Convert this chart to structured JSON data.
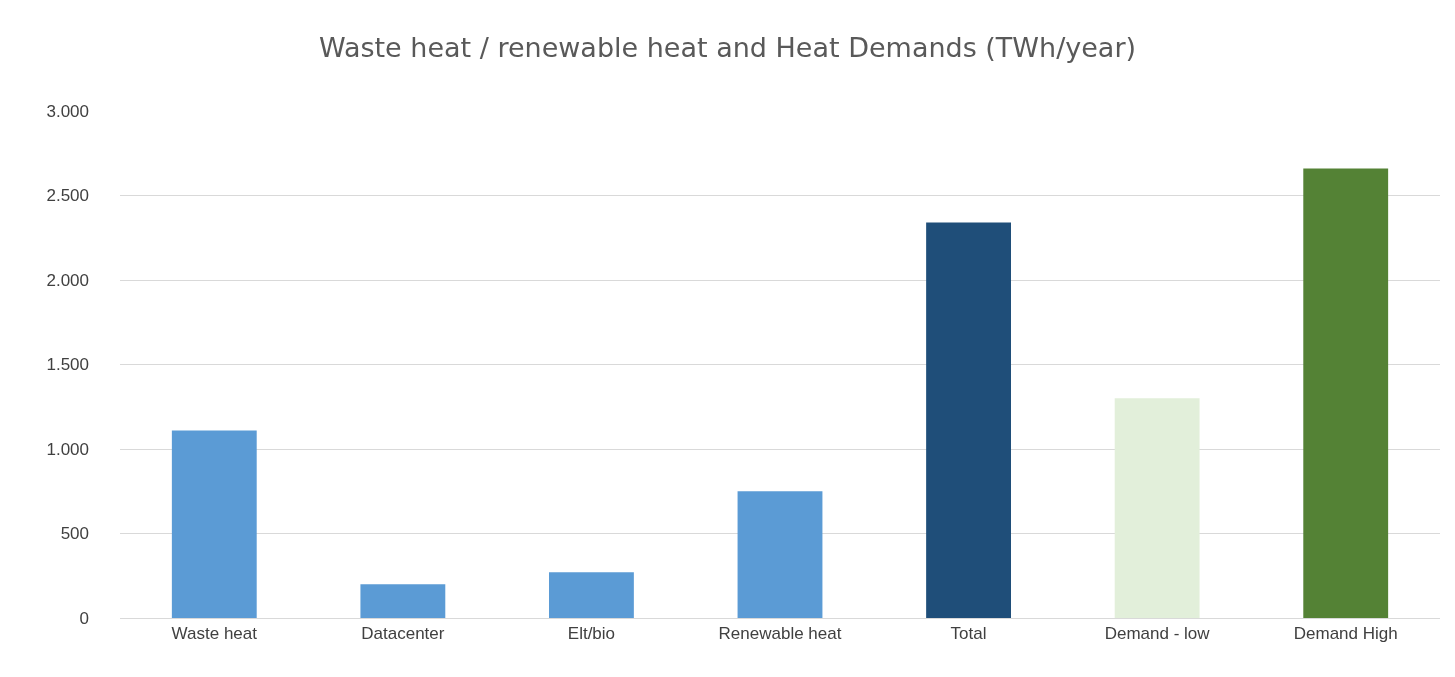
{
  "chart_data": {
    "type": "bar",
    "title": "Waste heat / renewable heat and Heat Demands (TWh/year)",
    "categories": [
      "Waste heat",
      "Datacenter",
      "Elt/bio",
      "Renewable heat",
      "Total",
      "Demand - low",
      "Demand High"
    ],
    "values": [
      1110,
      200,
      270,
      750,
      2340,
      1300,
      2660
    ],
    "colors": [
      "#5b9bd5",
      "#5b9bd5",
      "#5b9bd5",
      "#5b9bd5",
      "#1f4e79",
      "#e2efda",
      "#548235"
    ],
    "ylim": [
      0,
      3000
    ],
    "yticks": [
      {
        "value": 0,
        "label": "0"
      },
      {
        "value": 500,
        "label": "500"
      },
      {
        "value": 1000,
        "label": "1.000"
      },
      {
        "value": 1500,
        "label": "1.500"
      },
      {
        "value": 2000,
        "label": "2.000"
      },
      {
        "value": 2500,
        "label": "2.500"
      },
      {
        "value": 3000,
        "label": "3.000"
      }
    ],
    "grid": "y",
    "legend": false
  }
}
